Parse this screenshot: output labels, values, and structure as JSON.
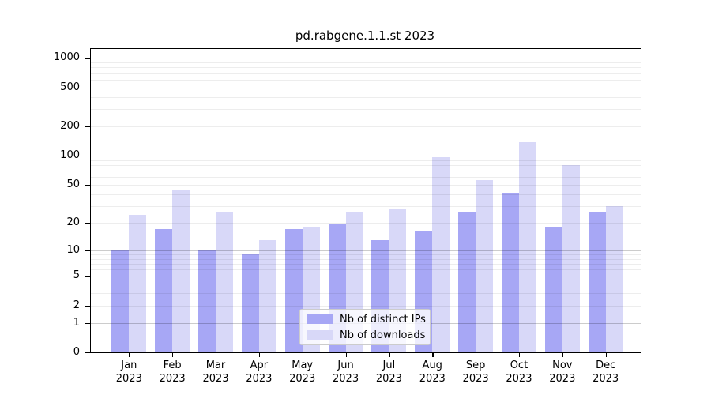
{
  "title": "pd.rabgene.1.1.st 2023",
  "chart_data": {
    "type": "bar",
    "title": "pd.rabgene.1.1.st 2023",
    "categories": [
      "Jan",
      "Feb",
      "Mar",
      "Apr",
      "May",
      "Jun",
      "Jul",
      "Aug",
      "Sep",
      "Oct",
      "Nov",
      "Dec"
    ],
    "x_year_label": "2023",
    "series": [
      {
        "name": "Nb of distinct IPs",
        "color": "#a7a7f5",
        "values": [
          10,
          17,
          10,
          9,
          17,
          19,
          13,
          16,
          26,
          41,
          18,
          26
        ]
      },
      {
        "name": "Nb of downloads",
        "color": "#d8d8f8",
        "values": [
          24,
          44,
          26,
          13,
          18,
          26,
          28,
          97,
          56,
          137,
          80,
          30
        ]
      }
    ],
    "xlabel": "",
    "ylabel": "",
    "yscale": "log1p",
    "yticks": [
      0,
      1,
      2,
      5,
      10,
      20,
      50,
      100,
      200,
      500,
      1000
    ],
    "ylim": [
      0,
      1240
    ],
    "grid": {
      "major": [
        1,
        10,
        100,
        1000
      ],
      "minor_per_decade": [
        2,
        3,
        4,
        5,
        6,
        7,
        8,
        9
      ],
      "minor_decades": [
        1,
        10,
        100
      ]
    },
    "legend": {
      "position": "lower-center",
      "items": [
        "Nb of distinct IPs",
        "Nb of downloads"
      ]
    }
  }
}
